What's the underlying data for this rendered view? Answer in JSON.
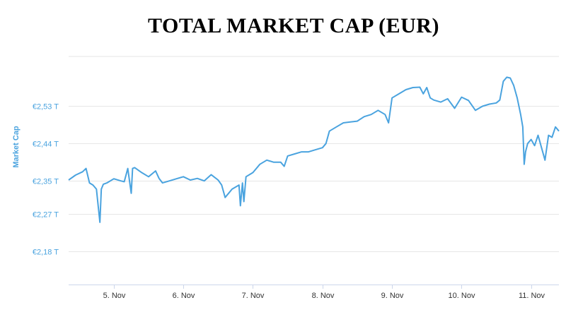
{
  "chart_data": {
    "type": "line",
    "title": "TOTAL MARKET CAP (EUR)",
    "ylabel": "Market Cap",
    "xlabel": "",
    "colors": {
      "line": "#4aa3df",
      "grid": "#e6e6e6",
      "axis_text": "#4aa3df"
    },
    "grid": true,
    "legend": "none",
    "ylim": [
      2.1,
      2.65
    ],
    "y_ticks": [
      {
        "value": 2.18,
        "label": "€2,18 T"
      },
      {
        "value": 2.27,
        "label": "€2,27 T"
      },
      {
        "value": 2.35,
        "label": "€2,35 T"
      },
      {
        "value": 2.44,
        "label": "€2,44 T"
      },
      {
        "value": 2.53,
        "label": "€2,53 T"
      }
    ],
    "xlim": [
      4.35,
      11.4
    ],
    "x_ticks": [
      {
        "value": 5,
        "label": "5. Nov"
      },
      {
        "value": 6,
        "label": "6. Nov"
      },
      {
        "value": 7,
        "label": "7. Nov"
      },
      {
        "value": 8,
        "label": "8. Nov"
      },
      {
        "value": 9,
        "label": "9. Nov"
      },
      {
        "value": 10,
        "label": "10. Nov"
      },
      {
        "value": 11,
        "label": "11. Nov"
      }
    ],
    "series": [
      {
        "x": [
          4.35,
          4.45,
          4.55,
          4.6,
          4.65,
          4.7,
          4.75,
          4.8,
          4.82,
          4.85,
          4.9,
          5.0,
          5.1,
          5.15,
          5.2,
          5.25,
          5.27,
          5.3,
          5.35,
          5.4,
          5.5,
          5.6,
          5.65,
          5.7,
          5.8,
          5.9,
          6.0,
          6.1,
          6.2,
          6.3,
          6.4,
          6.5,
          6.55,
          6.6,
          6.65,
          6.7,
          6.75,
          6.8,
          6.82,
          6.85,
          6.87,
          6.9,
          6.95,
          7.0,
          7.1,
          7.2,
          7.3,
          7.4,
          7.45,
          7.5,
          7.6,
          7.7,
          7.8,
          7.9,
          8.0,
          8.05,
          8.1,
          8.2,
          8.3,
          8.4,
          8.5,
          8.6,
          8.7,
          8.8,
          8.9,
          8.95,
          9.0,
          9.1,
          9.2,
          9.3,
          9.4,
          9.45,
          9.5,
          9.55,
          9.6,
          9.7,
          9.8,
          9.9,
          10.0,
          10.1,
          10.2,
          10.3,
          10.4,
          10.5,
          10.55,
          10.6,
          10.65,
          10.7,
          10.75,
          10.8,
          10.85,
          10.88,
          10.9,
          10.92,
          10.95,
          11.0,
          11.05,
          11.1,
          11.15,
          11.2,
          11.25,
          11.3,
          11.35,
          11.4
        ],
        "y": [
          2.352,
          2.364,
          2.372,
          2.38,
          2.345,
          2.34,
          2.33,
          2.25,
          2.33,
          2.342,
          2.345,
          2.355,
          2.35,
          2.348,
          2.38,
          2.32,
          2.38,
          2.382,
          2.376,
          2.37,
          2.36,
          2.374,
          2.356,
          2.345,
          2.35,
          2.355,
          2.36,
          2.352,
          2.356,
          2.35,
          2.365,
          2.352,
          2.34,
          2.31,
          2.32,
          2.33,
          2.335,
          2.34,
          2.29,
          2.345,
          2.3,
          2.36,
          2.365,
          2.37,
          2.39,
          2.4,
          2.395,
          2.395,
          2.385,
          2.41,
          2.415,
          2.42,
          2.42,
          2.425,
          2.43,
          2.44,
          2.47,
          2.48,
          2.49,
          2.492,
          2.494,
          2.505,
          2.51,
          2.52,
          2.51,
          2.49,
          2.55,
          2.56,
          2.57,
          2.575,
          2.576,
          2.56,
          2.575,
          2.55,
          2.545,
          2.54,
          2.548,
          2.525,
          2.552,
          2.544,
          2.52,
          2.53,
          2.535,
          2.538,
          2.545,
          2.59,
          2.6,
          2.598,
          2.58,
          2.55,
          2.51,
          2.48,
          2.39,
          2.42,
          2.44,
          2.45,
          2.435,
          2.46,
          2.43,
          2.4,
          2.46,
          2.455,
          2.48,
          2.47
        ]
      }
    ]
  }
}
